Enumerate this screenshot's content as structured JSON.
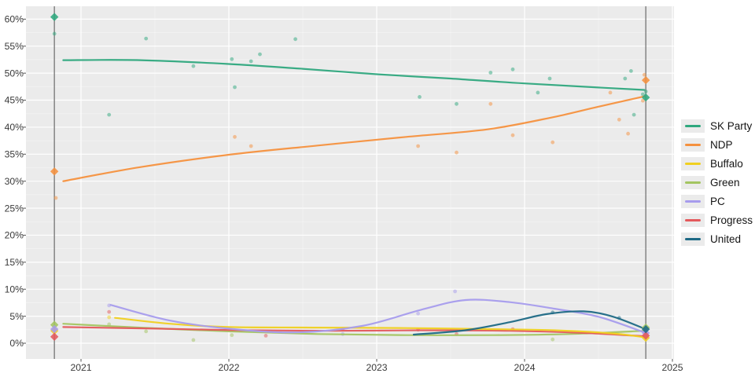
{
  "chart_data": {
    "type": "scatter",
    "subtype": "poll-points-with-smoothed-trend-lines",
    "title": "",
    "xlabel": "",
    "ylabel": "",
    "grid": "white major and faint minor gridlines on gray panel",
    "panel_bg": "#ebebeb",
    "grid_color": "#ffffff",
    "axis_text_color": "#3a3a3a",
    "election_line_color": "#7d7d7d",
    "legend_position": "right",
    "legend_key_bg": "#ebebeb",
    "xlim": [
      2020.63,
      2025.01
    ],
    "ylim": [
      -2.9,
      62.4
    ],
    "x_ticks": [
      {
        "value": 2021,
        "label": "2021"
      },
      {
        "value": 2022,
        "label": "2022"
      },
      {
        "value": 2023,
        "label": "2023"
      },
      {
        "value": 2024,
        "label": "2024"
      },
      {
        "value": 2025,
        "label": "2025"
      }
    ],
    "y_ticks": [
      {
        "value": 0,
        "label": "0%"
      },
      {
        "value": 5,
        "label": "5%"
      },
      {
        "value": 10,
        "label": "10%"
      },
      {
        "value": 15,
        "label": "15%"
      },
      {
        "value": 20,
        "label": "20%"
      },
      {
        "value": 25,
        "label": "25%"
      },
      {
        "value": 30,
        "label": "30%"
      },
      {
        "value": 35,
        "label": "35%"
      },
      {
        "value": 40,
        "label": "40%"
      },
      {
        "value": 45,
        "label": "45%"
      },
      {
        "value": 50,
        "label": "50%"
      },
      {
        "value": 55,
        "label": "55%"
      },
      {
        "value": 60,
        "label": "60%"
      }
    ],
    "election_dates": [
      2020.82,
      2024.82
    ],
    "series": [
      {
        "name": "SK Party",
        "color": "#2fa87e",
        "trend": [
          [
            2020.88,
            52.4
          ],
          [
            2021.4,
            52.4
          ],
          [
            2022.0,
            51.7
          ],
          [
            2022.5,
            50.8
          ],
          [
            2023.0,
            49.8
          ],
          [
            2023.5,
            49.0
          ],
          [
            2024.0,
            48.1
          ],
          [
            2024.81,
            46.9
          ]
        ],
        "polls": [
          [
            2020.82,
            57.3
          ],
          [
            2021.19,
            42.3
          ],
          [
            2021.44,
            56.4
          ],
          [
            2021.76,
            51.3
          ],
          [
            2022.02,
            52.6
          ],
          [
            2022.04,
            47.4
          ],
          [
            2022.15,
            52.2
          ],
          [
            2022.21,
            53.5
          ],
          [
            2022.45,
            56.3
          ],
          [
            2023.29,
            45.6
          ],
          [
            2023.54,
            44.3
          ],
          [
            2023.77,
            50.1
          ],
          [
            2023.92,
            50.7
          ],
          [
            2024.09,
            46.4
          ],
          [
            2024.17,
            49.0
          ],
          [
            2024.68,
            49.0
          ],
          [
            2024.72,
            50.4
          ],
          [
            2024.74,
            42.3
          ],
          [
            2024.8,
            46.1
          ],
          [
            2024.82,
            46.6
          ]
        ],
        "elections": [
          [
            2020.82,
            60.4
          ],
          [
            2024.82,
            45.5
          ]
        ]
      },
      {
        "name": "NDP",
        "color": "#f5913e",
        "trend": [
          [
            2020.88,
            30.0
          ],
          [
            2021.4,
            32.6
          ],
          [
            2022.0,
            34.9
          ],
          [
            2022.6,
            36.6
          ],
          [
            2023.2,
            38.2
          ],
          [
            2023.75,
            39.6
          ],
          [
            2024.2,
            41.9
          ],
          [
            2024.5,
            43.8
          ],
          [
            2024.81,
            45.7
          ]
        ],
        "polls": [
          [
            2020.83,
            26.9
          ],
          [
            2022.04,
            38.2
          ],
          [
            2022.15,
            36.5
          ],
          [
            2023.28,
            36.5
          ],
          [
            2023.54,
            35.3
          ],
          [
            2023.77,
            44.3
          ],
          [
            2023.92,
            38.5
          ],
          [
            2024.19,
            37.2
          ],
          [
            2024.58,
            46.4
          ],
          [
            2024.64,
            41.4
          ],
          [
            2024.7,
            38.8
          ],
          [
            2024.8,
            44.9
          ],
          [
            2024.81,
            49.7
          ]
        ],
        "elections": [
          [
            2020.82,
            31.8
          ],
          [
            2024.82,
            48.7
          ]
        ]
      },
      {
        "name": "Buffalo",
        "color": "#f0d020",
        "trend": [
          [
            2021.23,
            4.7
          ],
          [
            2021.6,
            3.6
          ],
          [
            2022.0,
            3.0
          ],
          [
            2022.6,
            2.9
          ],
          [
            2023.2,
            2.8
          ],
          [
            2023.8,
            2.6
          ],
          [
            2024.2,
            2.4
          ],
          [
            2024.6,
            1.8
          ],
          [
            2024.81,
            1.1
          ]
        ],
        "polls": [
          [
            2021.19,
            4.8
          ]
        ],
        "elections": [
          [
            2020.82,
            2.3
          ],
          [
            2024.82,
            1.0
          ]
        ]
      },
      {
        "name": "Green",
        "color": "#a3c561",
        "trend": [
          [
            2020.88,
            3.6
          ],
          [
            2021.4,
            2.9
          ],
          [
            2022.0,
            2.2
          ],
          [
            2022.6,
            1.7
          ],
          [
            2023.2,
            1.5
          ],
          [
            2023.8,
            1.5
          ],
          [
            2024.3,
            1.7
          ],
          [
            2024.81,
            2.3
          ]
        ],
        "polls": [
          [
            2021.19,
            3.5
          ],
          [
            2021.44,
            2.2
          ],
          [
            2021.76,
            0.6
          ],
          [
            2022.02,
            1.5
          ],
          [
            2024.19,
            0.7
          ]
        ],
        "elections": [
          [
            2020.82,
            3.4
          ],
          [
            2024.82,
            2.9
          ]
        ]
      },
      {
        "name": "PC",
        "color": "#a79ced",
        "trend": [
          [
            2021.2,
            7.1
          ],
          [
            2021.6,
            4.2
          ],
          [
            2022.0,
            2.7
          ],
          [
            2022.45,
            2.0
          ],
          [
            2022.9,
            3.2
          ],
          [
            2023.3,
            6.2
          ],
          [
            2023.6,
            8.0
          ],
          [
            2023.9,
            7.6
          ],
          [
            2024.2,
            6.4
          ],
          [
            2024.5,
            4.9
          ],
          [
            2024.81,
            2.0
          ]
        ],
        "polls": [
          [
            2021.19,
            7.0
          ],
          [
            2022.77,
            1.7
          ],
          [
            2023.28,
            5.5
          ],
          [
            2023.53,
            9.6
          ]
        ],
        "elections": [
          [
            2020.82,
            2.6
          ],
          [
            2024.82,
            1.9
          ]
        ]
      },
      {
        "name": "Progress",
        "color": "#e4595c",
        "trend": [
          [
            2020.88,
            3.0
          ],
          [
            2021.5,
            2.7
          ],
          [
            2022.1,
            2.4
          ],
          [
            2022.7,
            2.3
          ],
          [
            2023.3,
            2.4
          ],
          [
            2023.9,
            2.3
          ],
          [
            2024.4,
            1.9
          ],
          [
            2024.81,
            1.3
          ]
        ],
        "polls": [
          [
            2021.19,
            5.8
          ],
          [
            2022.25,
            1.4
          ],
          [
            2022.77,
            2.6
          ],
          [
            2023.28,
            2.5
          ],
          [
            2023.54,
            1.7
          ],
          [
            2023.92,
            2.6
          ]
        ],
        "elections": [
          [
            2020.82,
            1.2
          ],
          [
            2024.82,
            1.4
          ]
        ]
      },
      {
        "name": "United",
        "color": "#1d6985",
        "trend": [
          [
            2023.25,
            1.6
          ],
          [
            2023.6,
            2.4
          ],
          [
            2023.9,
            3.9
          ],
          [
            2024.15,
            5.4
          ],
          [
            2024.4,
            5.9
          ],
          [
            2024.6,
            4.9
          ],
          [
            2024.81,
            2.7
          ]
        ],
        "polls": [
          [
            2024.19,
            5.7
          ],
          [
            2024.64,
            4.7
          ]
        ],
        "elections": [
          [
            2024.82,
            2.6
          ]
        ]
      }
    ]
  }
}
